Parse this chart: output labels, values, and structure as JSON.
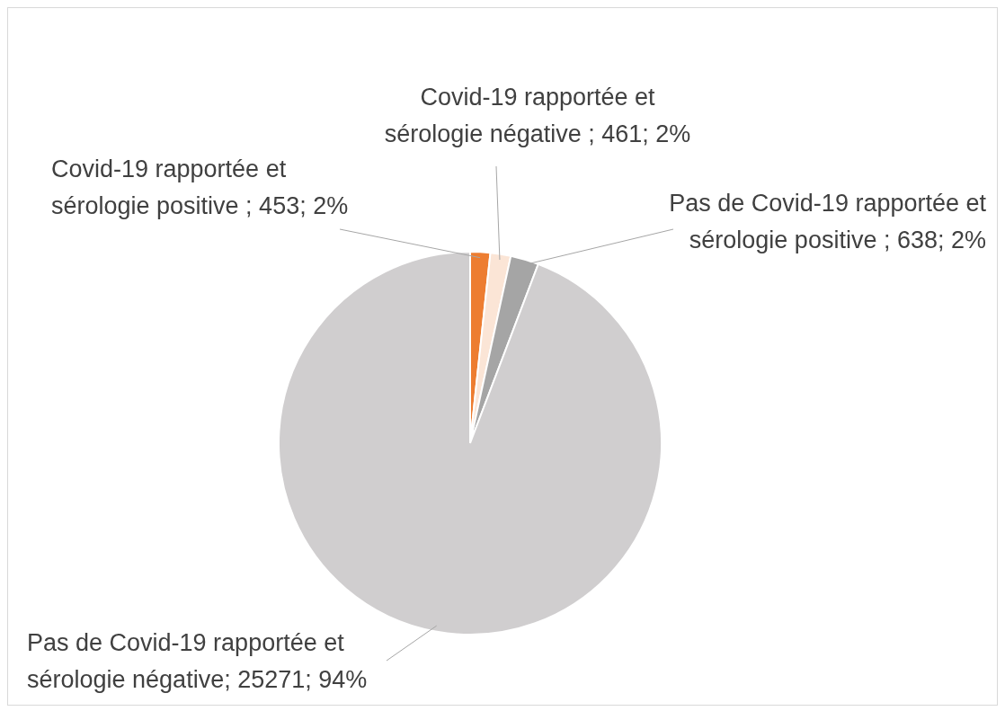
{
  "chart_data": {
    "type": "pie",
    "categories": [
      "Covid-19 rapportée et sérologie positive",
      "Covid-19 rapportée et sérologie négative",
      "Pas de Covid-19 rapportée et sérologie positive",
      "Pas de Covid-19 rapportée et sérologie négative"
    ],
    "values": [
      453,
      461,
      638,
      25271
    ],
    "colors": [
      "#ed7d31",
      "#fbe5d6",
      "#a5a5a5",
      "#d0cecf"
    ],
    "value_labels": [
      " ; 453; 2%",
      " ; 461; 2%",
      " ; 638; 2%",
      "; 25271; 94%"
    ],
    "legend": false
  }
}
